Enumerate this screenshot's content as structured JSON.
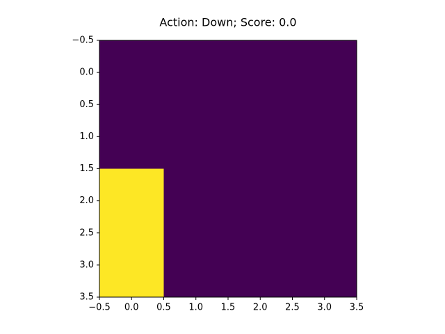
{
  "chart_data": {
    "type": "heatmap",
    "title": "Action: Down; Score: 0.0",
    "z": [
      [
        0,
        0,
        0,
        0
      ],
      [
        0,
        0,
        0,
        0
      ],
      [
        1,
        0,
        0,
        0
      ],
      [
        1,
        0,
        0,
        0
      ]
    ],
    "colors": [
      "#440154",
      "#fde725"
    ],
    "xlim": [
      -0.5,
      3.5
    ],
    "xticks": [
      {
        "value": -0.5,
        "label": "−0.5"
      },
      {
        "value": 0,
        "label": "0.0"
      },
      0.5,
      {
        "value": 1,
        "label": "1.0"
      },
      1.5,
      {
        "value": 2,
        "label": "2.0"
      },
      2.5,
      {
        "value": 3,
        "label": "3.0"
      },
      3.5
    ],
    "ylim": [
      3.5,
      -0.5
    ],
    "yticks": [
      {
        "value": -0.5,
        "label": "−0.5"
      },
      {
        "value": 0,
        "label": "0.0"
      },
      0.5,
      {
        "value": 1,
        "label": "1.0"
      },
      1.5,
      {
        "value": 2,
        "label": "2.0"
      },
      2.5,
      {
        "value": 3,
        "label": "3.0"
      },
      3.5
    ]
  }
}
